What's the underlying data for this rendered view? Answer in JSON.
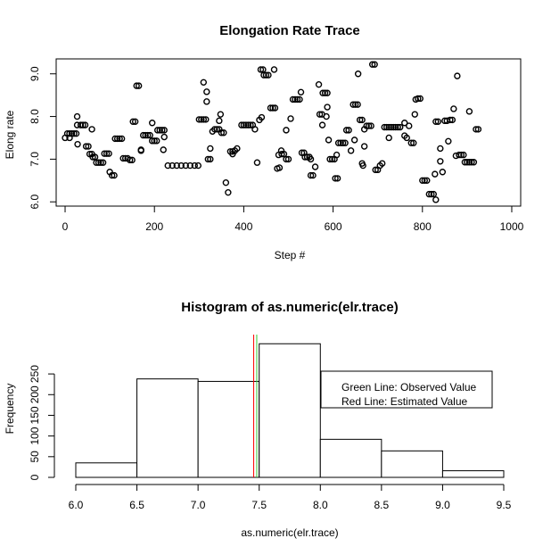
{
  "chart_data": [
    {
      "type": "scatter",
      "title": "Elongation Rate Trace",
      "xlabel": "Step #",
      "ylabel": "Elong rate",
      "xlim": [
        -20,
        1020
      ],
      "ylim": [
        5.9,
        9.35
      ],
      "xticks": [
        0,
        200,
        400,
        600,
        800,
        1000
      ],
      "yticks": [
        6.0,
        7.0,
        8.0,
        9.0
      ],
      "xtick_labels": [
        "0",
        "200",
        "400",
        "600",
        "800",
        "1000"
      ],
      "ytick_labels": [
        "6.0",
        "7.0",
        "8.0",
        "9.0"
      ],
      "marker": "open-circle",
      "segments": [
        [
          0,
          7.5
        ],
        [
          5,
          7.6
        ],
        [
          10,
          7.6
        ],
        [
          15,
          7.6
        ],
        [
          20,
          7.6
        ],
        [
          25,
          7.6
        ],
        [
          27,
          7.8
        ],
        [
          35,
          7.8
        ],
        [
          40,
          7.8
        ],
        [
          45,
          7.8
        ],
        [
          47,
          7.3
        ],
        [
          52,
          7.3
        ],
        [
          55,
          7.12
        ],
        [
          60,
          7.12
        ],
        [
          62,
          7.05
        ],
        [
          67,
          7.05
        ],
        [
          70,
          6.92
        ],
        [
          75,
          6.92
        ],
        [
          80,
          6.92
        ],
        [
          85,
          6.92
        ],
        [
          88,
          7.13
        ],
        [
          93,
          7.13
        ],
        [
          98,
          7.13
        ],
        [
          100,
          6.7
        ],
        [
          105,
          6.62
        ],
        [
          110,
          6.62
        ],
        [
          112,
          7.48
        ],
        [
          117,
          7.48
        ],
        [
          122,
          7.48
        ],
        [
          127,
          7.48
        ],
        [
          130,
          7.02
        ],
        [
          135,
          7.02
        ],
        [
          140,
          7.02
        ],
        [
          145,
          6.98
        ],
        [
          150,
          6.98
        ],
        [
          152,
          7.88
        ],
        [
          157,
          7.88
        ],
        [
          160,
          8.72
        ],
        [
          165,
          8.72
        ],
        [
          170,
          7.22
        ],
        [
          175,
          7.56
        ],
        [
          180,
          7.56
        ],
        [
          185,
          7.56
        ],
        [
          190,
          7.56
        ],
        [
          195,
          7.43
        ],
        [
          200,
          7.43
        ],
        [
          205,
          7.43
        ],
        [
          207,
          7.68
        ],
        [
          212,
          7.68
        ],
        [
          217,
          7.68
        ],
        [
          220,
          7.22
        ],
        [
          222,
          7.52
        ],
        [
          230,
          6.85
        ],
        [
          240,
          6.85
        ],
        [
          250,
          6.85
        ],
        [
          260,
          6.85
        ],
        [
          270,
          6.85
        ],
        [
          280,
          6.85
        ],
        [
          290,
          6.85
        ],
        [
          298,
          6.85
        ],
        [
          300,
          7.93
        ],
        [
          305,
          7.93
        ],
        [
          310,
          7.93
        ],
        [
          315,
          7.93
        ],
        [
          317,
          8.58
        ],
        [
          320,
          7.0
        ],
        [
          325,
          7.25
        ],
        [
          330,
          7.65
        ],
        [
          335,
          7.7
        ],
        [
          340,
          7.7
        ],
        [
          345,
          7.7
        ],
        [
          350,
          7.62
        ],
        [
          355,
          7.62
        ],
        [
          360,
          6.45
        ],
        [
          365,
          6.22
        ],
        [
          370,
          7.18
        ],
        [
          375,
          7.18
        ],
        [
          380,
          7.2
        ],
        [
          385,
          7.25
        ],
        [
          395,
          7.8
        ],
        [
          400,
          7.8
        ],
        [
          405,
          7.8
        ],
        [
          410,
          7.8
        ],
        [
          415,
          7.8
        ],
        [
          420,
          7.8
        ],
        [
          425,
          7.7
        ],
        [
          430,
          6.92
        ],
        [
          435,
          7.92
        ],
        [
          438,
          9.1
        ],
        [
          443,
          9.1
        ],
        [
          445,
          8.97
        ],
        [
          450,
          8.97
        ],
        [
          455,
          8.97
        ],
        [
          460,
          8.2
        ],
        [
          465,
          8.2
        ],
        [
          470,
          8.2
        ],
        [
          475,
          6.78
        ],
        [
          480,
          6.8
        ],
        [
          485,
          7.12
        ],
        [
          490,
          7.12
        ],
        [
          495,
          7.0
        ],
        [
          500,
          7.0
        ],
        [
          505,
          7.95
        ],
        [
          510,
          8.4
        ],
        [
          515,
          8.4
        ],
        [
          520,
          8.4
        ],
        [
          525,
          8.4
        ],
        [
          528,
          8.57
        ],
        [
          530,
          7.15
        ],
        [
          535,
          7.15
        ],
        [
          537,
          7.05
        ],
        [
          542,
          7.05
        ],
        [
          547,
          7.05
        ],
        [
          550,
          6.62
        ],
        [
          555,
          6.62
        ],
        [
          560,
          6.82
        ],
        [
          570,
          8.05
        ],
        [
          575,
          8.05
        ],
        [
          577,
          8.55
        ],
        [
          582,
          8.55
        ],
        [
          587,
          8.55
        ],
        [
          590,
          7.45
        ],
        [
          593,
          7.0
        ],
        [
          598,
          7.0
        ],
        [
          603,
          7.0
        ],
        [
          605,
          6.55
        ],
        [
          610,
          6.55
        ],
        [
          612,
          7.38
        ],
        [
          617,
          7.38
        ],
        [
          622,
          7.38
        ],
        [
          627,
          7.38
        ],
        [
          630,
          7.68
        ],
        [
          635,
          7.68
        ],
        [
          640,
          7.2
        ],
        [
          645,
          8.28
        ],
        [
          650,
          8.28
        ],
        [
          655,
          8.28
        ],
        [
          660,
          7.92
        ],
        [
          665,
          7.92
        ],
        [
          667,
          6.85
        ],
        [
          670,
          7.7
        ],
        [
          675,
          7.78
        ],
        [
          680,
          7.78
        ],
        [
          685,
          7.78
        ],
        [
          688,
          9.22
        ],
        [
          693,
          9.22
        ],
        [
          695,
          6.75
        ],
        [
          700,
          6.75
        ],
        [
          705,
          6.85
        ],
        [
          715,
          7.75
        ],
        [
          720,
          7.75
        ],
        [
          725,
          7.75
        ],
        [
          730,
          7.75
        ],
        [
          735,
          7.75
        ],
        [
          740,
          7.75
        ],
        [
          745,
          7.75
        ],
        [
          750,
          7.75
        ],
        [
          760,
          7.55
        ],
        [
          765,
          7.5
        ],
        [
          770,
          7.78
        ],
        [
          775,
          7.38
        ],
        [
          780,
          7.38
        ],
        [
          783,
          8.05
        ],
        [
          790,
          8.42
        ],
        [
          795,
          8.42
        ],
        [
          800,
          6.5
        ],
        [
          805,
          6.5
        ],
        [
          810,
          6.5
        ],
        [
          815,
          6.18
        ],
        [
          820,
          6.18
        ],
        [
          825,
          6.18
        ],
        [
          828,
          6.65
        ],
        [
          830,
          7.88
        ],
        [
          835,
          7.88
        ],
        [
          840,
          7.25
        ],
        [
          845,
          6.7
        ],
        [
          850,
          7.9
        ],
        [
          855,
          7.9
        ],
        [
          858,
          7.42
        ],
        [
          862,
          7.92
        ],
        [
          867,
          7.92
        ],
        [
          870,
          8.18
        ],
        [
          875,
          7.08
        ],
        [
          878,
          8.95
        ],
        [
          882,
          7.1
        ],
        [
          887,
          7.1
        ],
        [
          892,
          7.1
        ],
        [
          895,
          6.93
        ],
        [
          900,
          6.93
        ],
        [
          905,
          6.93
        ],
        [
          910,
          6.93
        ],
        [
          915,
          6.93
        ],
        [
          920,
          7.7
        ],
        [
          925,
          7.7
        ]
      ],
      "extra_points": [
        [
          10,
          7.5
        ],
        [
          28,
          7.35
        ],
        [
          27,
          8.0
        ],
        [
          60,
          7.7
        ],
        [
          170,
          7.2
        ],
        [
          195,
          7.85
        ],
        [
          222,
          7.68
        ],
        [
          310,
          8.8
        ],
        [
          317,
          8.35
        ],
        [
          325,
          7.0
        ],
        [
          345,
          7.9
        ],
        [
          348,
          8.05
        ],
        [
          375,
          7.12
        ],
        [
          440,
          7.98
        ],
        [
          468,
          9.1
        ],
        [
          478,
          7.1
        ],
        [
          484,
          7.2
        ],
        [
          495,
          7.68
        ],
        [
          550,
          7.0
        ],
        [
          568,
          8.75
        ],
        [
          585,
          8.0
        ],
        [
          587,
          8.22
        ],
        [
          576,
          7.8
        ],
        [
          608,
          7.1
        ],
        [
          648,
          7.45
        ],
        [
          656,
          9.0
        ],
        [
          665,
          6.9
        ],
        [
          670,
          7.3
        ],
        [
          710,
          6.9
        ],
        [
          725,
          7.5
        ],
        [
          760,
          7.85
        ],
        [
          785,
          8.4
        ],
        [
          830,
          6.05
        ],
        [
          840,
          6.95
        ],
        [
          905,
          8.12
        ]
      ]
    },
    {
      "type": "bar",
      "title": "Histogram of as.numeric(elr.trace)",
      "xlabel": "as.numeric(elr.trace)",
      "ylabel": "Frequency",
      "bins": [
        [
          6.0,
          6.5,
          35
        ],
        [
          6.5,
          7.0,
          238
        ],
        [
          7.0,
          7.5,
          232
        ],
        [
          7.5,
          8.0,
          323
        ],
        [
          8.0,
          8.5,
          92
        ],
        [
          8.5,
          9.0,
          64
        ],
        [
          9.0,
          9.5,
          16
        ]
      ],
      "xlim": [
        6.0,
        9.5
      ],
      "ylim": [
        0,
        330
      ],
      "xticks": [
        6.0,
        6.5,
        7.0,
        7.5,
        8.0,
        8.5,
        9.0,
        9.5
      ],
      "yticks": [
        0,
        50,
        100,
        150,
        200,
        250
      ],
      "xtick_labels": [
        "6.0",
        "6.5",
        "7.0",
        "7.5",
        "8.0",
        "8.5",
        "9.0",
        "9.5"
      ],
      "ytick_labels": [
        "0",
        "50",
        "100",
        "150",
        "200",
        "250"
      ],
      "lines": [
        {
          "name": "observed",
          "value": 7.48,
          "color": "#33cc33"
        },
        {
          "name": "estimated",
          "value": 7.455,
          "color": "#ff0000"
        }
      ],
      "legend": [
        "Green Line: Observed Value",
        "Red Line: Estimated Value"
      ],
      "legend_position": "top-right"
    }
  ]
}
